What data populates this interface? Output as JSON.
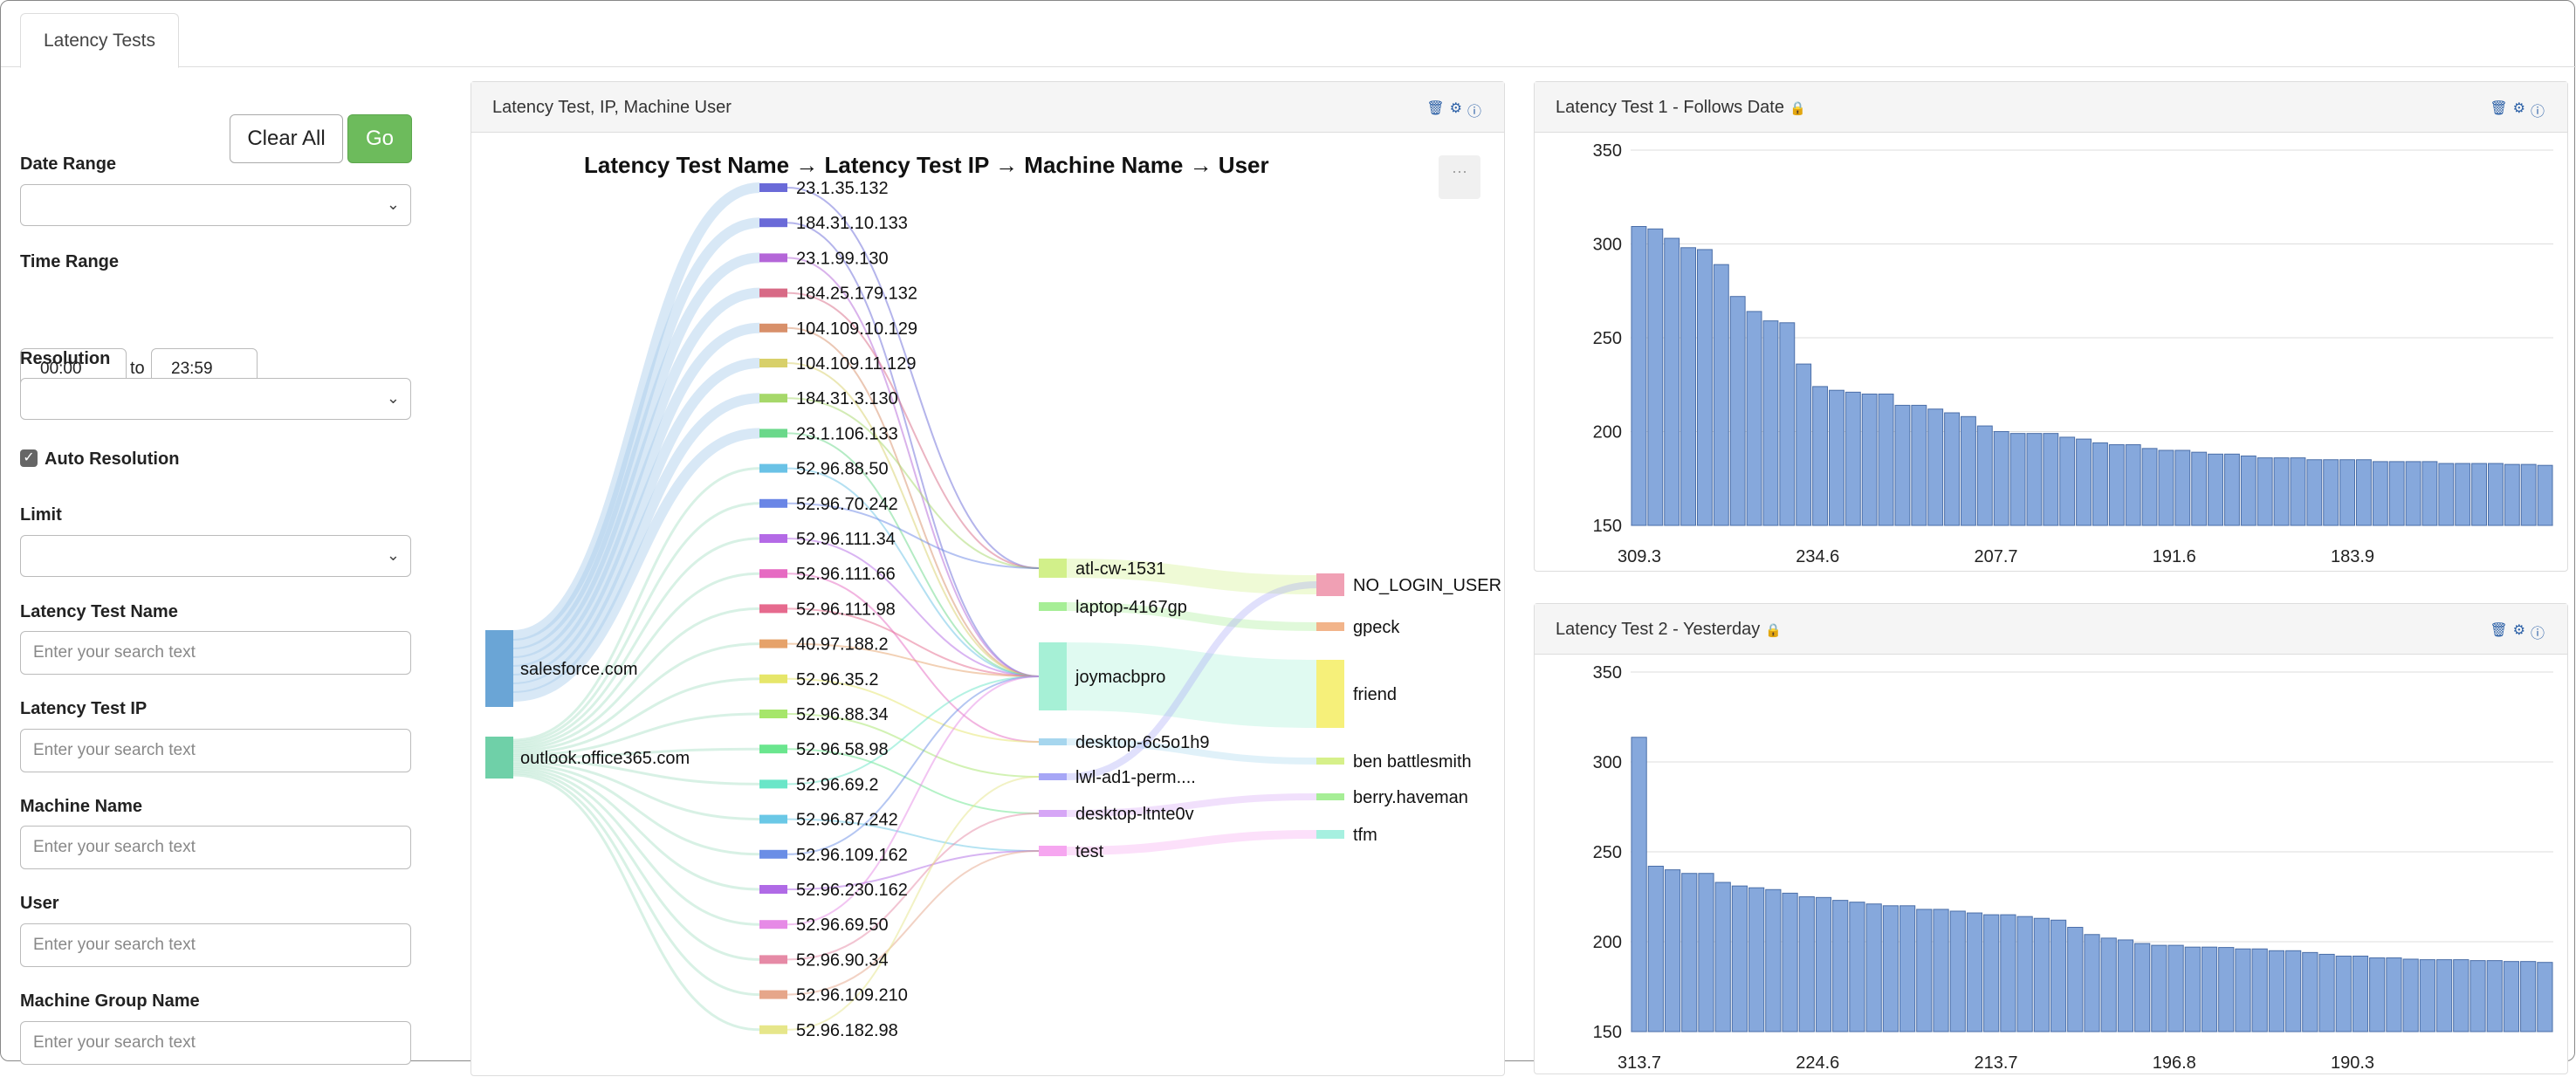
{
  "tabs": [
    {
      "label": "Latency Tests"
    }
  ],
  "sidebar": {
    "clear_label": "Clear All",
    "go_label": "Go",
    "date_range_label": "Date Range",
    "time_range_label": "Time Range",
    "time_from": "00:00",
    "to_label": "to",
    "time_to": "23:59",
    "resolution_label": "Resolution",
    "auto_resolution_label": "Auto Resolution",
    "auto_resolution_checked": true,
    "limit_label": "Limit",
    "latency_test_name_label": "Latency Test Name",
    "latency_test_ip_label": "Latency Test IP",
    "machine_name_label": "Machine Name",
    "user_label": "User",
    "machine_group_label": "Machine Group Name",
    "search_placeholder": "Enter your search text"
  },
  "icons": [
    "trash-icon",
    "gear-icon",
    "info-icon",
    "lock-icon",
    "chevron-down-icon",
    "checkbox-icon",
    "more-icon"
  ],
  "sankey_panel": {
    "title": "Latency Test, IP, Machine User",
    "chart_title": "Latency Test Name → Latency Test IP → Machine Name → User",
    "more_label": "···",
    "sources": [
      {
        "label": "salesforce.com",
        "color": "#6aa5d6"
      },
      {
        "label": "outlook.office365.com",
        "color": "#6fd0a8"
      }
    ],
    "ips": [
      {
        "label": "23.1.35.132",
        "color": "#6a6ad8"
      },
      {
        "label": "184.31.10.133",
        "color": "#6a6ad8"
      },
      {
        "label": "23.1.99.130",
        "color": "#b466d8"
      },
      {
        "label": "184.25.179.132",
        "color": "#d86a86"
      },
      {
        "label": "104.109.10.129",
        "color": "#d8906a"
      },
      {
        "label": "104.109.11.129",
        "color": "#d8d06a"
      },
      {
        "label": "184.31.3.130",
        "color": "#a6d86a"
      },
      {
        "label": "23.1.106.133",
        "color": "#6ad88a"
      },
      {
        "label": "52.96.88.50",
        "color": "#6ac2e6"
      },
      {
        "label": "52.96.70.242",
        "color": "#6a86e6"
      },
      {
        "label": "52.96.111.34",
        "color": "#b46ae6"
      },
      {
        "label": "52.96.111.66",
        "color": "#e66ac2"
      },
      {
        "label": "52.96.111.98",
        "color": "#e66a8e"
      },
      {
        "label": "40.97.188.2",
        "color": "#e6a26a"
      },
      {
        "label": "52.96.35.2",
        "color": "#e6e66a"
      },
      {
        "label": "52.96.88.34",
        "color": "#a6e66a"
      },
      {
        "label": "52.96.58.98",
        "color": "#6ae68e"
      },
      {
        "label": "52.96.69.2",
        "color": "#6ae6c8"
      },
      {
        "label": "52.96.87.242",
        "color": "#6ac8e6"
      },
      {
        "label": "52.96.109.162",
        "color": "#6a8ee6"
      },
      {
        "label": "52.96.230.162",
        "color": "#b06ae6"
      },
      {
        "label": "52.96.69.50",
        "color": "#e68ae6"
      },
      {
        "label": "52.96.90.34",
        "color": "#e68aa6"
      },
      {
        "label": "52.96.109.210",
        "color": "#e6a68a"
      },
      {
        "label": "52.96.182.98",
        "color": "#e6e68a"
      }
    ],
    "machines": [
      {
        "label": "atl-cw-1531",
        "color": "#d2f08a"
      },
      {
        "label": "laptop-4167gp",
        "color": "#a6ee96"
      },
      {
        "label": "joymacbpro",
        "color": "#a6f0d6"
      },
      {
        "label": "desktop-6c5o1h9",
        "color": "#a6d6ee"
      },
      {
        "label": "lwl-ad1-perm....",
        "color": "#a6a6f6"
      },
      {
        "label": "desktop-ltnte0v",
        "color": "#d6a6f6"
      },
      {
        "label": "test",
        "color": "#f6a6f0"
      }
    ],
    "users": [
      {
        "label": "NO_LOGIN_USER",
        "color": "#f0a0b4"
      },
      {
        "label": "gpeck",
        "color": "#f2b48a"
      },
      {
        "label": "friend",
        "color": "#f6f07a"
      },
      {
        "label": "ben battlesmith",
        "color": "#d6f08a"
      },
      {
        "label": "berry.haveman",
        "color": "#a6ee96"
      },
      {
        "label": "tfm",
        "color": "#a6f0e0"
      }
    ]
  },
  "chart_panels": [
    {
      "title": "Latency Test 1 - Follows Date"
    },
    {
      "title": "Latency Test 2 - Yesterday"
    }
  ],
  "chart_data": [
    {
      "type": "bar",
      "title": "Latency Test 1 - Follows Date",
      "ylim": [
        150,
        350
      ],
      "yticks": [
        150,
        200,
        250,
        300,
        350
      ],
      "xticklabels": [
        "309.3",
        "234.6",
        "207.7",
        "191.6",
        "183.9"
      ],
      "bar_color": "#86a8dc",
      "grid": true,
      "values": [
        309.3,
        308,
        303,
        298,
        297,
        289,
        272,
        264,
        259,
        258,
        236,
        224,
        222,
        221,
        220,
        220,
        214,
        214,
        212,
        210,
        208,
        203,
        200,
        199,
        199,
        199,
        197,
        196,
        194,
        193,
        193,
        191,
        190,
        190,
        189,
        188,
        188,
        187,
        186,
        186,
        186,
        185,
        185,
        185,
        185,
        184,
        184,
        184,
        184,
        183,
        183,
        183,
        183,
        182.5,
        182.5,
        182
      ]
    },
    {
      "type": "bar",
      "title": "Latency Test 2 - Yesterday",
      "ylim": [
        150,
        350
      ],
      "yticks": [
        150,
        200,
        250,
        300,
        350
      ],
      "xticklabels": [
        "313.7",
        "224.6",
        "213.7",
        "196.8",
        "190.3"
      ],
      "bar_color": "#86a8dc",
      "grid": true,
      "values": [
        313.7,
        242,
        240,
        238,
        238,
        233,
        231,
        230,
        229,
        227,
        225,
        224.6,
        223,
        222,
        221,
        220,
        220,
        218,
        218,
        217,
        216,
        215,
        215,
        214,
        213,
        212,
        208,
        204,
        202,
        201,
        199,
        198,
        198,
        197,
        197,
        196.8,
        196,
        196,
        195,
        195,
        194,
        193,
        192,
        192,
        191,
        191,
        190.3,
        190,
        190,
        190,
        189.5,
        189.5,
        189,
        189,
        188.5
      ]
    }
  ]
}
